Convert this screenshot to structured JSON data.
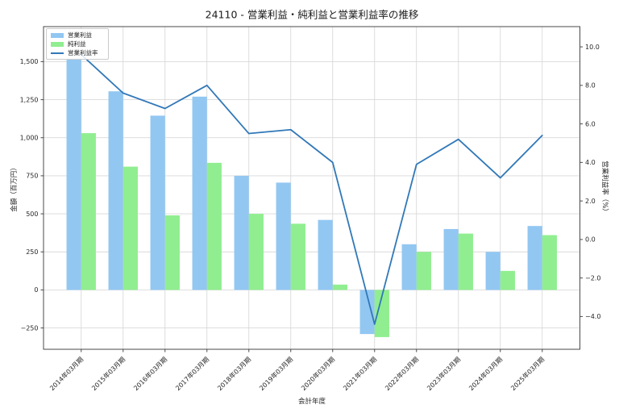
{
  "chart_data": {
    "type": "combo_bar_line",
    "title": "24110 - 営業利益・純利益と営業利益率の推移",
    "xlabel": "会計年度",
    "ylabel_left": "金額（百万円）",
    "ylabel_right": "営業利益率（%）",
    "categories": [
      "2014年03月期",
      "2015年03月期",
      "2016年03月期",
      "2017年03月期",
      "2018年03月期",
      "2019年03月期",
      "2020年03月期",
      "2021年03月期",
      "2022年03月期",
      "2023年03月期",
      "2024年03月期",
      "2025年03月期"
    ],
    "bar_series": [
      {
        "name": "営業利益",
        "color": "#92C7F2",
        "values": [
          1520,
          1305,
          1145,
          1270,
          750,
          705,
          460,
          -290,
          300,
          400,
          250,
          420
        ]
      },
      {
        "name": "純利益",
        "color": "#90EE90",
        "values": [
          1030,
          810,
          490,
          835,
          500,
          435,
          35,
          -310,
          250,
          370,
          125,
          360
        ]
      }
    ],
    "line_series": {
      "name": "営業利益率",
      "color": "#3178B8",
      "values": [
        9.6,
        7.6,
        6.8,
        8.0,
        5.5,
        5.7,
        4.0,
        -4.4,
        3.9,
        5.2,
        3.2,
        5.4
      ]
    },
    "yticks_left": [
      {
        "v": 1500,
        "label": "1,500"
      },
      {
        "v": 1250,
        "label": "1,250"
      },
      {
        "v": 1000,
        "label": "1,000"
      },
      {
        "v": 750,
        "label": "750"
      },
      {
        "v": 500,
        "label": "500"
      },
      {
        "v": 250,
        "label": "250"
      },
      {
        "v": 0,
        "label": "0"
      },
      {
        "v": -250,
        "label": "−250"
      }
    ],
    "yticks_right": [
      {
        "v": 10,
        "label": "10.0"
      },
      {
        "v": 8,
        "label": "8.0"
      },
      {
        "v": 6,
        "label": "6.0"
      },
      {
        "v": 4,
        "label": "4.0"
      },
      {
        "v": 2,
        "label": "2.0"
      },
      {
        "v": 0,
        "label": "0.0"
      },
      {
        "v": -2,
        "label": "−2.0"
      },
      {
        "v": -4,
        "label": "−4.0"
      }
    ],
    "ylim_left": [
      -390,
      1730
    ],
    "ylim_right": [
      -5.7,
      11.05
    ],
    "grid": true,
    "legend_position": "upper left"
  }
}
